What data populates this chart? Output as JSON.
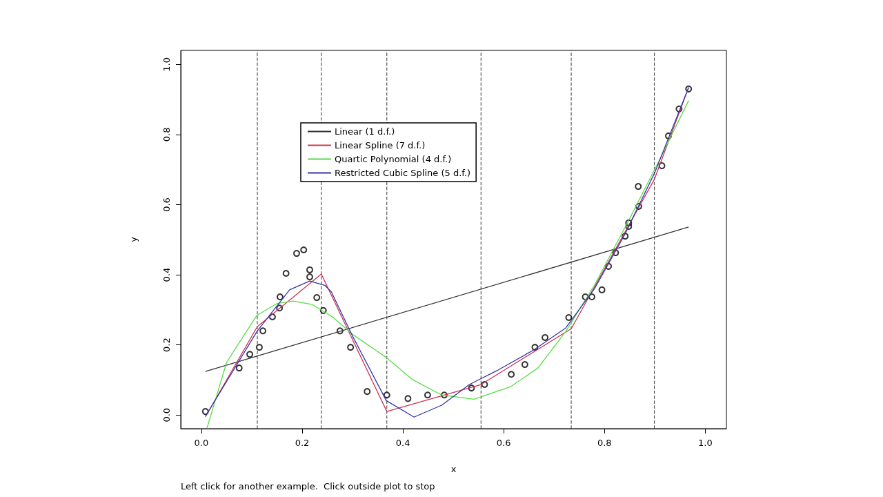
{
  "chart_data": {
    "type": "scatter",
    "xlabel": "x",
    "ylabel": "y",
    "xlim": [
      -0.041,
      1.042
    ],
    "ylim": [
      -0.039,
      1.04
    ],
    "xticks": [
      {
        "value": 0,
        "label": "0.0"
      },
      {
        "value": 0.2,
        "label": "0.2"
      },
      {
        "value": 0.4,
        "label": "0.4"
      },
      {
        "value": 0.6,
        "label": "0.6"
      },
      {
        "value": 0.8,
        "label": "0.8"
      },
      {
        "value": 1,
        "label": "1.0"
      }
    ],
    "yticks": [
      {
        "value": 0,
        "label": "0.0"
      },
      {
        "value": 0.2,
        "label": "0.2"
      },
      {
        "value": 0.4,
        "label": "0.4"
      },
      {
        "value": 0.6,
        "label": "0.6"
      },
      {
        "value": 0.8,
        "label": "0.8"
      },
      {
        "value": 1,
        "label": "1.0"
      }
    ],
    "grid": false,
    "legend": "top left",
    "series": [
      {
        "marker": "circle",
        "color": "#000000",
        "x": [
          0.008,
          0.075,
          0.096,
          0.115,
          0.122,
          0.141,
          0.155,
          0.156,
          0.168,
          0.189,
          0.203,
          0.215,
          0.215,
          0.229,
          0.242,
          0.275,
          0.296,
          0.329,
          0.368,
          0.41,
          0.449,
          0.482,
          0.536,
          0.562,
          0.615,
          0.642,
          0.662,
          0.682,
          0.729,
          0.762,
          0.775,
          0.795,
          0.808,
          0.822,
          0.841,
          0.848,
          0.848,
          0.867,
          0.868,
          0.914,
          0.927,
          0.948,
          0.967
        ],
        "values": [
          0.01,
          0.134,
          0.173,
          0.193,
          0.24,
          0.28,
          0.305,
          0.337,
          0.404,
          0.461,
          0.471,
          0.414,
          0.394,
          0.335,
          0.298,
          0.24,
          0.193,
          0.067,
          0.057,
          0.047,
          0.057,
          0.057,
          0.077,
          0.087,
          0.116,
          0.144,
          0.193,
          0.221,
          0.278,
          0.337,
          0.337,
          0.357,
          0.424,
          0.463,
          0.51,
          0.538,
          0.548,
          0.652,
          0.595,
          0.711,
          0.796,
          0.873,
          0.93
        ]
      },
      {
        "type": "line",
        "name": "Linear (1 d.f.)",
        "color": "#333333",
        "marker": "none",
        "line_style": "solid",
        "x": [
          0.008,
          0.967
        ],
        "values": [
          0.124,
          0.536
        ]
      },
      {
        "type": "line",
        "name": "Linear Spline (7 d.f.)",
        "color": "#cc3355",
        "marker": "none",
        "line_style": "solid",
        "x": [
          0.008,
          0.111,
          0.238,
          0.368,
          0.555,
          0.734,
          0.899,
          0.967
        ],
        "values": [
          -0.005,
          0.252,
          0.402,
          0.01,
          0.087,
          0.246,
          0.672,
          0.934
        ]
      },
      {
        "type": "line",
        "name": "Quartic Polynomial (4 d.f.)",
        "color": "#55dd44",
        "marker": "none",
        "line_style": "solid",
        "x": [
          0.011,
          0.05,
          0.11,
          0.15,
          0.182,
          0.22,
          0.26,
          0.3,
          0.367,
          0.42,
          0.477,
          0.541,
          0.614,
          0.668,
          0.723,
          0.78,
          0.85,
          0.91,
          0.967
        ],
        "values": [
          -0.038,
          0.15,
          0.284,
          0.318,
          0.325,
          0.315,
          0.28,
          0.23,
          0.164,
          0.1,
          0.057,
          0.045,
          0.081,
          0.134,
          0.238,
          0.37,
          0.56,
          0.73,
          0.897
        ]
      },
      {
        "type": "line",
        "name": "Restricted Cubic Spline (5 d.f.)",
        "color": "#3333aa",
        "marker": "none",
        "line_style": "solid",
        "x": [
          0.008,
          0.111,
          0.175,
          0.215,
          0.245,
          0.258,
          0.3,
          0.367,
          0.422,
          0.477,
          0.532,
          0.586,
          0.659,
          0.723,
          0.78,
          0.84,
          0.9,
          0.967
        ],
        "values": [
          -0.004,
          0.24,
          0.357,
          0.382,
          0.37,
          0.351,
          0.225,
          0.041,
          -0.006,
          0.028,
          0.087,
          0.126,
          0.185,
          0.248,
          0.36,
          0.514,
          0.692,
          0.934
        ]
      }
    ],
    "ref_lines": [
      {
        "axis": "x",
        "value": 0.111,
        "color": "#555555",
        "line_style": "dashed"
      },
      {
        "axis": "x",
        "value": 0.238,
        "color": "#555555",
        "line_style": "dashed"
      },
      {
        "axis": "x",
        "value": 0.368,
        "color": "#555555",
        "line_style": "dashed"
      },
      {
        "axis": "x",
        "value": 0.555,
        "color": "#555555",
        "line_style": "dashed"
      },
      {
        "axis": "x",
        "value": 0.734,
        "color": "#555555",
        "line_style": "dashed"
      },
      {
        "axis": "x",
        "value": 0.899,
        "color": "#555555",
        "line_style": "dashed"
      }
    ],
    "annotations": [
      "Left click for another example.  Click outside plot to stop"
    ]
  }
}
